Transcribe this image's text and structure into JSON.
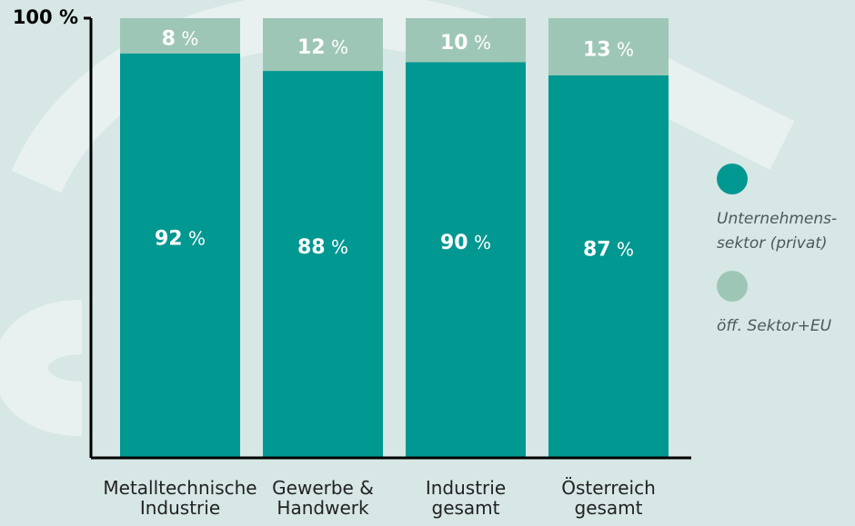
{
  "chart_data": {
    "type": "stacked-bar",
    "categories": [
      "Metalltechnische\nIndustrie",
      "Gewerbe &\nHandwerk",
      "Industrie\ngesamt",
      "Österreich\ngesamt"
    ],
    "series": [
      {
        "name": "Unternehmens-\nsektor (privat)",
        "color": "#009891",
        "values": [
          92,
          88,
          90,
          87
        ],
        "value_labels": [
          "92 %",
          "88 %",
          "90 %",
          "87 %"
        ]
      },
      {
        "name": "öff. Sektor+EU",
        "color": "#9ec6b6",
        "values": [
          8,
          12,
          10,
          13
        ],
        "value_labels": [
          "8 %",
          "12 %",
          "10 %",
          "13 %"
        ]
      }
    ],
    "ylim": [
      0,
      100
    ],
    "yticks": [
      {
        "value": 100,
        "label": "100 %"
      }
    ],
    "legend": "right"
  }
}
